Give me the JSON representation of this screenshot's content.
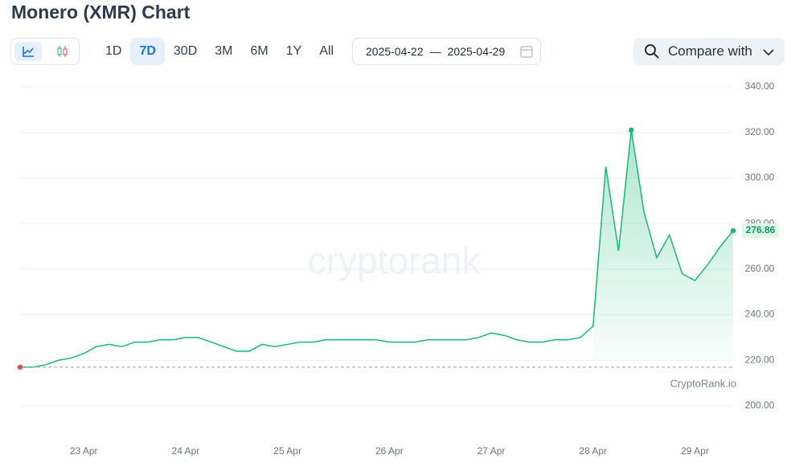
{
  "header": {
    "title": "Monero (XMR) Chart"
  },
  "controls": {
    "ranges": [
      "1D",
      "7D",
      "30D",
      "3M",
      "6M",
      "1Y",
      "All"
    ],
    "date_from": "2025-04-22",
    "date_separator": "—",
    "date_to": "2025-04-29",
    "compare": "Compare with"
  },
  "chart_data": {
    "type": "line",
    "watermark": "cryptorank",
    "source": "CryptoRank.io",
    "series": [
      {
        "name": "XMR",
        "color": "#16b979",
        "values": [
          217,
          217,
          218,
          220,
          221,
          223,
          226,
          227,
          226,
          228,
          228,
          229,
          229,
          230,
          230,
          228,
          226,
          224,
          224,
          227,
          226,
          227,
          228,
          228,
          229,
          229,
          229,
          229,
          229,
          228,
          228,
          228,
          229,
          229,
          229,
          229,
          230,
          232,
          231,
          229,
          228,
          228,
          229,
          229,
          230,
          235,
          305,
          268,
          321,
          285,
          265,
          275,
          258,
          255,
          262,
          270,
          276.86
        ]
      }
    ],
    "xlim": [
      0,
      56
    ],
    "xticks": [
      {
        "value": 5,
        "label": "23 Apr"
      },
      {
        "value": 13,
        "label": "24 Apr"
      },
      {
        "value": 21,
        "label": "25 Apr"
      },
      {
        "value": 29,
        "label": "26 Apr"
      },
      {
        "value": 37,
        "label": "27 Apr"
      },
      {
        "value": 45,
        "label": "28 Apr"
      },
      {
        "value": 53,
        "label": "29 Apr"
      }
    ],
    "ylim": [
      200,
      340
    ],
    "yticks": [
      {
        "value": 200,
        "label": "200.00"
      },
      {
        "value": 220,
        "label": "220.00"
      },
      {
        "value": 240,
        "label": "240.00"
      },
      {
        "value": 260,
        "label": "260.00"
      },
      {
        "value": 280,
        "label": "280.00"
      },
      {
        "value": 300,
        "label": "300.00"
      },
      {
        "value": 320,
        "label": "320.00"
      },
      {
        "value": 340,
        "label": "340.00"
      }
    ],
    "grid": true
  }
}
